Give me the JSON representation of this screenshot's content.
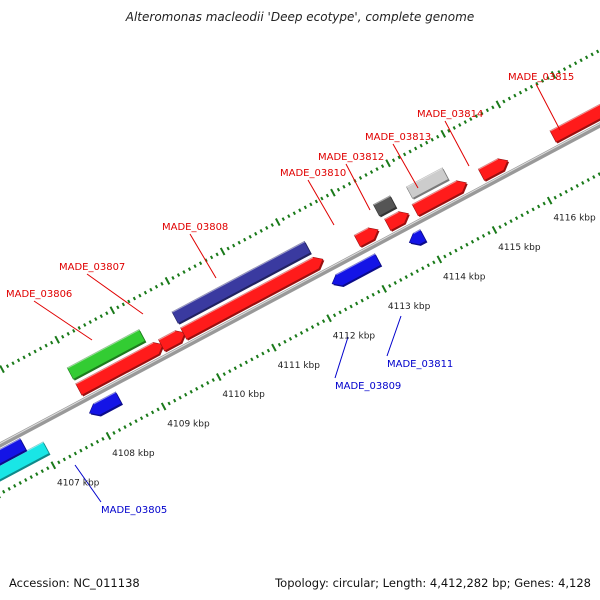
{
  "title": "Alteromonas macleodii 'Deep ecotype', complete genome",
  "footer": {
    "accession": "Accession: NC_011138",
    "summary": "Topology: circular; Length: 4,412,282 bp; Genes: 4,128"
  },
  "colors": {
    "forward_gene": "#ff1b1b",
    "reverse_gene": "#1414e6",
    "forward_label": "#e00000",
    "reverse_label": "#0000cc",
    "rna_gene": "#33cc33",
    "cyan_feature": "#19e6e6",
    "purple_feature": "#3a3aa0",
    "dark_feature": "#555555",
    "light_feature": "#cccccc",
    "backbone": "#999999",
    "tick_marks": "#1a7a1a"
  },
  "chart_data": {
    "type": "genome_map",
    "axis_unit": "kbp",
    "ticks": [
      {
        "kbp": 4107,
        "label": "4107 kbp"
      },
      {
        "kbp": 4108,
        "label": "4108 kbp"
      },
      {
        "kbp": 4109,
        "label": "4109 kbp"
      },
      {
        "kbp": 4110,
        "label": "4110 kbp"
      },
      {
        "kbp": 4111,
        "label": "4111 kbp"
      },
      {
        "kbp": 4112,
        "label": "4112 kbp"
      },
      {
        "kbp": 4113,
        "label": "4113 kbp"
      },
      {
        "kbp": 4114,
        "label": "4114 kbp"
      },
      {
        "kbp": 4115,
        "label": "4115 kbp"
      },
      {
        "kbp": 4116,
        "label": "4116 kbp"
      }
    ],
    "genes": [
      {
        "id": "MADE_03805",
        "strand": "reverse",
        "start": 4108.0,
        "end": 4108.4,
        "label": "MADE_03805"
      },
      {
        "id": "MADE_03806",
        "strand": "forward",
        "start": 4107.9,
        "end": 4109.3,
        "label": "MADE_03806"
      },
      {
        "id": "MADE_03807",
        "strand": "forward",
        "start": 4109.4,
        "end": 4109.7,
        "label": "MADE_03807"
      },
      {
        "id": "MADE_03808",
        "strand": "forward",
        "start": 4109.8,
        "end": 4112.2,
        "label": "MADE_03808"
      },
      {
        "id": "MADE_03809",
        "strand": "reverse",
        "start": 4112.4,
        "end": 4113.1,
        "label": "MADE_03809"
      },
      {
        "id": "MADE_03810",
        "strand": "forward",
        "start": 4112.95,
        "end": 4113.2,
        "label": "MADE_03810"
      },
      {
        "id": "MADE_03811",
        "strand": "reverse",
        "start": 4113.8,
        "end": 4113.92,
        "label": "MADE_03811"
      },
      {
        "id": "MADE_03812",
        "strand": "forward",
        "start": 4113.5,
        "end": 4113.75,
        "label": "MADE_03812"
      },
      {
        "id": "MADE_03813",
        "strand": "forward",
        "start": 4114.0,
        "end": 4114.8,
        "label": "MADE_03813"
      },
      {
        "id": "MADE_03814",
        "strand": "forward",
        "start": 4115.2,
        "end": 4115.55,
        "label": "MADE_03814"
      },
      {
        "id": "MADE_03815",
        "strand": "forward",
        "start": 4116.5,
        "end": 4118.0,
        "label": "MADE_03815"
      }
    ],
    "features": [
      {
        "kind": "reverse_cyan",
        "start": 4106.0,
        "end": 4107.0
      },
      {
        "kind": "reverse_partial",
        "start": 4106.0,
        "end": 4106.7
      },
      {
        "kind": "rna_green",
        "start": 4107.9,
        "end": 4109.2
      },
      {
        "kind": "purple",
        "start": 4109.8,
        "end": 4112.2
      },
      {
        "kind": "dark_gray",
        "start": 4113.45,
        "end": 4113.75
      },
      {
        "kind": "light_gray",
        "start": 4114.05,
        "end": 4114.7
      }
    ]
  }
}
